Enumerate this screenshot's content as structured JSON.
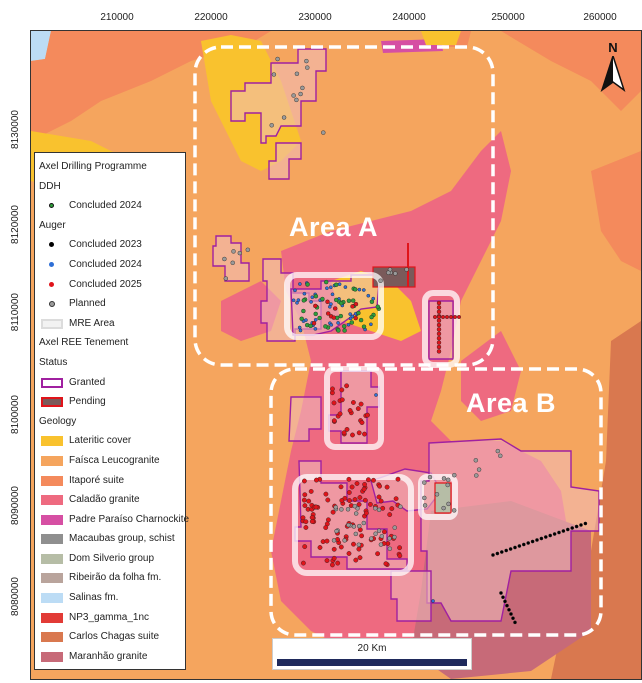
{
  "axes": {
    "x_ticks": [
      "210000",
      "220000",
      "230000",
      "240000",
      "250000",
      "260000"
    ],
    "y_ticks": [
      "8130000",
      "8120000",
      "8110000",
      "8100000",
      "8090000",
      "8080000"
    ]
  },
  "area_labels": {
    "a": "Area A",
    "b": "Area B"
  },
  "north_arrow": {
    "label": "N"
  },
  "scale_bar": {
    "label": "20 Km"
  },
  "legend": {
    "title": "Axel Drilling Programme",
    "ddh_heading": "DDH",
    "ddh_items": [
      {
        "label": "Concluded 2024",
        "color": "#2e9e3b",
        "icon": "dot-icon"
      }
    ],
    "auger_heading": "Auger",
    "auger_items": [
      {
        "label": "Concluded 2023",
        "color": "#000000",
        "icon": "dot-icon"
      },
      {
        "label": "Concluded 2024",
        "color": "#2f6fd6",
        "icon": "dot-icon"
      },
      {
        "label": "Concluded 2025",
        "color": "#e0141a",
        "icon": "dot-icon"
      },
      {
        "label": "Planned",
        "color": "#9a9a9a",
        "icon": "dot-icon"
      }
    ],
    "mre_label": "MRE Area",
    "tenement_heading": "Axel REE Tenement",
    "status_heading": "Status",
    "status_items": [
      {
        "label": "Granted",
        "color": "#a020a0"
      },
      {
        "label": "Pending",
        "color": "#7a5a5a"
      }
    ],
    "geology_heading": "Geology",
    "geology_items": [
      {
        "label": "Lateritic cover",
        "color": "#f9c22e"
      },
      {
        "label": "Faísca Leucogranite",
        "color": "#f5a55e"
      },
      {
        "label": "Itaporé suite",
        "color": "#f48a5c"
      },
      {
        "label": "Caladão granite",
        "color": "#ee6a80"
      },
      {
        "label": "Padre Paraíso Charnockite",
        "color": "#d64fa3"
      },
      {
        "label": "Macaubas group, schist",
        "color": "#8f8f8f"
      },
      {
        "label": "Dom Silverio group",
        "color": "#b6bda6"
      },
      {
        "label": "Ribeirão da folha fm.",
        "color": "#b9a49c"
      },
      {
        "label": "Salinas fm.",
        "color": "#bcdcf5"
      },
      {
        "label": "NP3_gamma_1nc",
        "color": "#e23b36"
      },
      {
        "label": "Carlos Chagas suite",
        "color": "#d9784f"
      },
      {
        "label": "Maranhão granite",
        "color": "#c76a78"
      }
    ]
  }
}
